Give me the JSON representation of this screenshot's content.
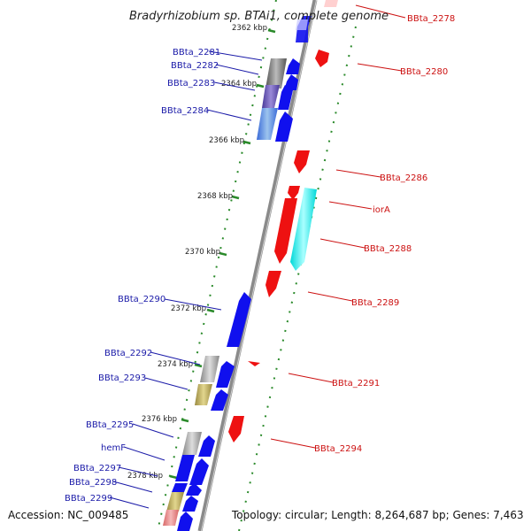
{
  "title": "Bradyrhizobium sp. BTAi1, complete genome",
  "accession": "Accession: NC_009485",
  "topology": "Topology: circular; Length: 8,264,687 bp; Genes: 7,463",
  "colors": {
    "left_label": "#1a1aa8",
    "right_label": "#cc1111",
    "forward_gene": "#1010ee",
    "reverse_gene": "#ee1111",
    "track_dots": "#2a8a2a"
  },
  "kbp_markers": [
    "2362 kbp",
    "2364 kbp",
    "2366 kbp",
    "2368 kbp",
    "2370 kbp",
    "2372 kbp",
    "2374 kbp",
    "2376 kbp",
    "2378 kbp"
  ],
  "left_labels": [
    "BBta_2281",
    "BBta_2282",
    "BBta_2283",
    "BBta_2284",
    "BBta_2290",
    "BBta_2292",
    "BBta_2293",
    "BBta_2295",
    "hemF",
    "BBta_2297",
    "BBta_2298",
    "BBta_2299"
  ],
  "right_labels": [
    "BBta_2278",
    "BBta_2280",
    "BBta_2286",
    "iorA",
    "BBta_2288",
    "BBta_2289",
    "BBta_2291",
    "BBta_2294"
  ]
}
